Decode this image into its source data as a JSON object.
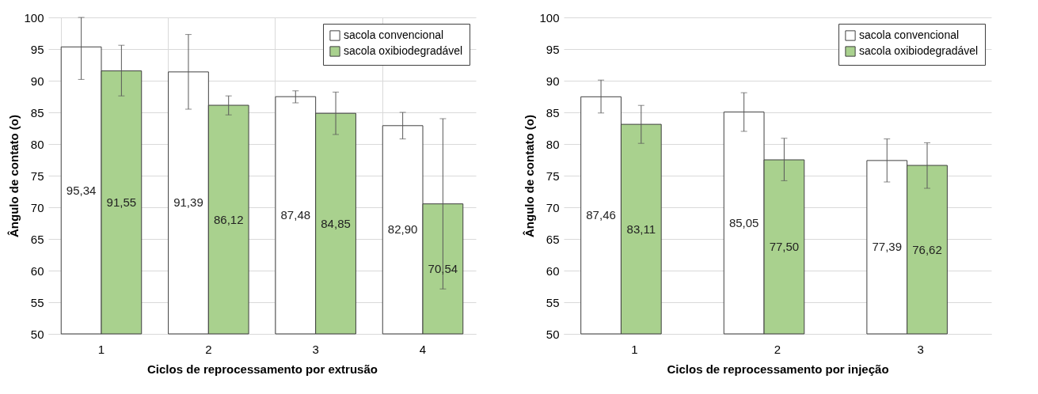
{
  "chart_data": [
    {
      "type": "bar",
      "xlabel": "Ciclos de reprocessamento por extrusão",
      "ylabel": "Ângulo  de contato (o)",
      "categories": [
        "1",
        "2",
        "3",
        "4"
      ],
      "series": [
        {
          "name": "sacola convencional",
          "color": "#ffffff",
          "values": [
            95.34,
            91.39,
            87.48,
            82.9
          ],
          "errors": [
            [
              90.2,
              100
            ],
            [
              85.5,
              97.3
            ],
            [
              86.5,
              88.4
            ],
            [
              80.8,
              85.0
            ]
          ],
          "value_labels": [
            "95,34",
            "91,39",
            "87,48",
            "82,90"
          ]
        },
        {
          "name": "sacola oxibiodegradável",
          "color": "#a9d18e",
          "values": [
            91.55,
            86.12,
            84.85,
            70.54
          ],
          "errors": [
            [
              87.6,
              95.6
            ],
            [
              84.6,
              87.6
            ],
            [
              81.5,
              88.2
            ],
            [
              57.1,
              84.0
            ]
          ],
          "value_labels": [
            "91,55",
            "86,12",
            "84,85",
            "70,54"
          ]
        }
      ],
      "ylim": [
        50,
        100
      ],
      "yticks": [
        50,
        55,
        60,
        65,
        70,
        75,
        80,
        85,
        90,
        95,
        100
      ],
      "grid": true,
      "legend": "top right"
    },
    {
      "type": "bar",
      "xlabel": "Ciclos de reprocessamento por injeção",
      "ylabel": "Ângulo  de contato (o)",
      "categories": [
        "1",
        "2",
        "3"
      ],
      "series": [
        {
          "name": "sacola convencional",
          "color": "#ffffff",
          "values": [
            87.46,
            85.05,
            77.39
          ],
          "errors": [
            [
              84.9,
              90.1
            ],
            [
              82.0,
              88.1
            ],
            [
              74.0,
              80.8
            ]
          ],
          "value_labels": [
            "87,46",
            "85,05",
            "77,39"
          ]
        },
        {
          "name": "sacola oxibiodegradável",
          "color": "#a9d18e",
          "values": [
            83.11,
            77.5,
            76.62
          ],
          "errors": [
            [
              80.1,
              86.1
            ],
            [
              74.2,
              80.9
            ],
            [
              73.0,
              80.2
            ]
          ],
          "value_labels": [
            "83,11",
            "77,50",
            "76,62"
          ]
        }
      ],
      "ylim": [
        50,
        100
      ],
      "yticks": [
        50,
        55,
        60,
        65,
        70,
        75,
        80,
        85,
        90,
        95,
        100
      ],
      "grid": "y",
      "legend": "top right"
    }
  ]
}
